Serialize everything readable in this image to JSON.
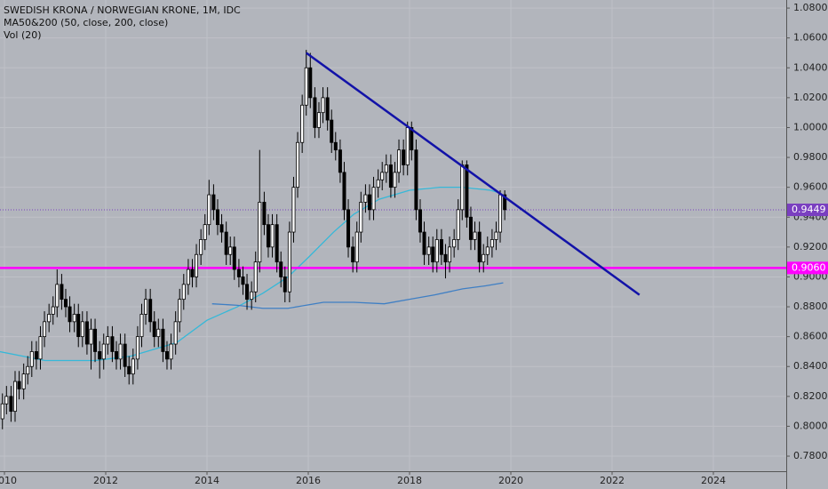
{
  "chart_data": {
    "type": "candlestick",
    "title": "SWEDISH KRONA / NORWEGIAN KRONE, 1M, IDC",
    "indicators": [
      "MA50&200 (50, close, 200, close)",
      "Vol (20)"
    ],
    "xlim": [
      2009.912,
      2025.439
    ],
    "xticks": [
      2010,
      2012,
      2014,
      2016,
      2018,
      2020,
      2022,
      2024
    ],
    "ylim": [
      0.7699,
      1.0854
    ],
    "yticks": [
      {
        "value": 0.78,
        "label": "0.7800"
      },
      {
        "value": 0.8,
        "label": "0.8000"
      },
      {
        "value": 0.82,
        "label": "0.8200"
      },
      {
        "value": 0.84,
        "label": "0.8400"
      },
      {
        "value": 0.86,
        "label": "0.8600"
      },
      {
        "value": 0.88,
        "label": "0.8800"
      },
      {
        "value": 0.9,
        "label": "0.9000"
      },
      {
        "value": 0.92,
        "label": "0.9200"
      },
      {
        "value": 0.94,
        "label": "0.9400"
      },
      {
        "value": 0.96,
        "label": "0.9600"
      },
      {
        "value": 0.98,
        "label": "0.9800"
      },
      {
        "value": 1.0,
        "label": "1.0000"
      },
      {
        "value": 1.02,
        "label": "1.0200"
      },
      {
        "value": 1.04,
        "label": "1.0400"
      },
      {
        "value": 1.06,
        "label": "1.0600"
      },
      {
        "value": 1.08,
        "label": "1.0800"
      }
    ],
    "grid": true,
    "up_color": "#ffffff",
    "down_color": "#000000",
    "x": [
      2009.96,
      2010.04,
      2010.13,
      2010.21,
      2010.29,
      2010.38,
      2010.46,
      2010.54,
      2010.63,
      2010.71,
      2010.79,
      2010.88,
      2010.96,
      2011.04,
      2011.13,
      2011.21,
      2011.29,
      2011.38,
      2011.46,
      2011.54,
      2011.63,
      2011.71,
      2011.79,
      2011.88,
      2011.96,
      2012.04,
      2012.13,
      2012.21,
      2012.29,
      2012.38,
      2012.46,
      2012.54,
      2012.63,
      2012.71,
      2012.79,
      2012.88,
      2012.96,
      2013.04,
      2013.13,
      2013.21,
      2013.29,
      2013.38,
      2013.46,
      2013.54,
      2013.63,
      2013.71,
      2013.79,
      2013.88,
      2013.96,
      2014.04,
      2014.13,
      2014.21,
      2014.29,
      2014.38,
      2014.46,
      2014.54,
      2014.63,
      2014.71,
      2014.79,
      2014.88,
      2014.96,
      2015.04,
      2015.13,
      2015.21,
      2015.29,
      2015.38,
      2015.46,
      2015.54,
      2015.63,
      2015.71,
      2015.79,
      2015.88,
      2015.96,
      2016.04,
      2016.13,
      2016.21,
      2016.29,
      2016.38,
      2016.46,
      2016.54,
      2016.63,
      2016.71,
      2016.79,
      2016.88,
      2016.96,
      2017.04,
      2017.13,
      2017.21,
      2017.29,
      2017.38,
      2017.46,
      2017.54,
      2017.63,
      2017.71,
      2017.79,
      2017.88,
      2017.96,
      2018.04,
      2018.13,
      2018.21,
      2018.29,
      2018.38,
      2018.46,
      2018.54,
      2018.63,
      2018.71,
      2018.79,
      2018.88,
      2018.96,
      2019.04,
      2019.13,
      2019.21,
      2019.29,
      2019.38,
      2019.46,
      2019.54,
      2019.63,
      2019.71,
      2019.79,
      2019.88
    ],
    "ohlc": [
      [
        0.805,
        0.822,
        0.798,
        0.815
      ],
      [
        0.815,
        0.827,
        0.808,
        0.82
      ],
      [
        0.82,
        0.827,
        0.803,
        0.81
      ],
      [
        0.81,
        0.837,
        0.803,
        0.83
      ],
      [
        0.83,
        0.837,
        0.818,
        0.825
      ],
      [
        0.825,
        0.842,
        0.818,
        0.835
      ],
      [
        0.835,
        0.847,
        0.828,
        0.84
      ],
      [
        0.84,
        0.857,
        0.833,
        0.85
      ],
      [
        0.85,
        0.857,
        0.838,
        0.845
      ],
      [
        0.845,
        0.867,
        0.838,
        0.86
      ],
      [
        0.86,
        0.877,
        0.853,
        0.87
      ],
      [
        0.87,
        0.882,
        0.863,
        0.875
      ],
      [
        0.875,
        0.887,
        0.868,
        0.88
      ],
      [
        0.88,
        0.905,
        0.873,
        0.895
      ],
      [
        0.895,
        0.902,
        0.878,
        0.885
      ],
      [
        0.885,
        0.892,
        0.873,
        0.88
      ],
      [
        0.88,
        0.887,
        0.863,
        0.87
      ],
      [
        0.87,
        0.882,
        0.863,
        0.875
      ],
      [
        0.875,
        0.882,
        0.853,
        0.86
      ],
      [
        0.86,
        0.877,
        0.853,
        0.87
      ],
      [
        0.87,
        0.877,
        0.848,
        0.855
      ],
      [
        0.855,
        0.872,
        0.838,
        0.865
      ],
      [
        0.865,
        0.872,
        0.843,
        0.85
      ],
      [
        0.85,
        0.857,
        0.832,
        0.845
      ],
      [
        0.845,
        0.862,
        0.838,
        0.855
      ],
      [
        0.855,
        0.867,
        0.848,
        0.86
      ],
      [
        0.86,
        0.867,
        0.843,
        0.85
      ],
      [
        0.85,
        0.857,
        0.838,
        0.845
      ],
      [
        0.845,
        0.862,
        0.838,
        0.855
      ],
      [
        0.855,
        0.862,
        0.833,
        0.84
      ],
      [
        0.84,
        0.847,
        0.828,
        0.835
      ],
      [
        0.835,
        0.852,
        0.828,
        0.845
      ],
      [
        0.845,
        0.867,
        0.838,
        0.86
      ],
      [
        0.86,
        0.882,
        0.853,
        0.875
      ],
      [
        0.875,
        0.892,
        0.868,
        0.885
      ],
      [
        0.885,
        0.892,
        0.863,
        0.87
      ],
      [
        0.87,
        0.877,
        0.853,
        0.86
      ],
      [
        0.86,
        0.872,
        0.853,
        0.865
      ],
      [
        0.865,
        0.872,
        0.843,
        0.85
      ],
      [
        0.85,
        0.857,
        0.838,
        0.845
      ],
      [
        0.845,
        0.862,
        0.838,
        0.855
      ],
      [
        0.855,
        0.877,
        0.848,
        0.87
      ],
      [
        0.87,
        0.892,
        0.863,
        0.885
      ],
      [
        0.885,
        0.902,
        0.878,
        0.895
      ],
      [
        0.895,
        0.912,
        0.888,
        0.905
      ],
      [
        0.905,
        0.912,
        0.893,
        0.9
      ],
      [
        0.9,
        0.922,
        0.893,
        0.915
      ],
      [
        0.915,
        0.932,
        0.908,
        0.925
      ],
      [
        0.925,
        0.942,
        0.918,
        0.935
      ],
      [
        0.935,
        0.965,
        0.928,
        0.955
      ],
      [
        0.955,
        0.962,
        0.938,
        0.945
      ],
      [
        0.945,
        0.952,
        0.928,
        0.935
      ],
      [
        0.935,
        0.942,
        0.923,
        0.93
      ],
      [
        0.93,
        0.937,
        0.908,
        0.915
      ],
      [
        0.915,
        0.927,
        0.908,
        0.92
      ],
      [
        0.92,
        0.927,
        0.898,
        0.905
      ],
      [
        0.905,
        0.912,
        0.893,
        0.9
      ],
      [
        0.9,
        0.907,
        0.888,
        0.895
      ],
      [
        0.895,
        0.902,
        0.878,
        0.885
      ],
      [
        0.885,
        0.897,
        0.878,
        0.89
      ],
      [
        0.89,
        0.917,
        0.883,
        0.91
      ],
      [
        0.91,
        0.985,
        0.903,
        0.95
      ],
      [
        0.95,
        0.957,
        0.928,
        0.935
      ],
      [
        0.935,
        0.942,
        0.913,
        0.92
      ],
      [
        0.92,
        0.942,
        0.913,
        0.935
      ],
      [
        0.935,
        0.942,
        0.903,
        0.91
      ],
      [
        0.91,
        0.917,
        0.893,
        0.9
      ],
      [
        0.9,
        0.907,
        0.883,
        0.89
      ],
      [
        0.89,
        0.937,
        0.883,
        0.93
      ],
      [
        0.93,
        0.967,
        0.923,
        0.96
      ],
      [
        0.96,
        0.997,
        0.953,
        0.99
      ],
      [
        0.99,
        1.022,
        0.983,
        1.015
      ],
      [
        1.015,
        1.052,
        1.008,
        1.04
      ],
      [
        1.04,
        1.05,
        1.013,
        1.02
      ],
      [
        1.02,
        1.027,
        0.993,
        1.0
      ],
      [
        1.0,
        1.017,
        0.993,
        1.01
      ],
      [
        1.01,
        1.027,
        1.003,
        1.02
      ],
      [
        1.02,
        1.027,
        0.998,
        1.005
      ],
      [
        1.005,
        1.012,
        0.983,
        0.99
      ],
      [
        0.99,
        0.997,
        0.978,
        0.985
      ],
      [
        0.985,
        0.992,
        0.963,
        0.97
      ],
      [
        0.97,
        0.977,
        0.938,
        0.945
      ],
      [
        0.945,
        0.952,
        0.913,
        0.92
      ],
      [
        0.92,
        0.927,
        0.903,
        0.91
      ],
      [
        0.91,
        0.937,
        0.903,
        0.93
      ],
      [
        0.93,
        0.957,
        0.923,
        0.95
      ],
      [
        0.95,
        0.962,
        0.943,
        0.955
      ],
      [
        0.955,
        0.962,
        0.938,
        0.945
      ],
      [
        0.945,
        0.967,
        0.938,
        0.96
      ],
      [
        0.96,
        0.972,
        0.953,
        0.965
      ],
      [
        0.965,
        0.977,
        0.958,
        0.97
      ],
      [
        0.97,
        0.982,
        0.963,
        0.975
      ],
      [
        0.975,
        0.982,
        0.953,
        0.96
      ],
      [
        0.96,
        0.977,
        0.953,
        0.97
      ],
      [
        0.97,
        0.992,
        0.963,
        0.985
      ],
      [
        0.985,
        0.992,
        0.968,
        0.975
      ],
      [
        0.975,
        1.004,
        0.968,
        1.0
      ],
      [
        1.0,
        1.004,
        0.978,
        0.985
      ],
      [
        0.985,
        0.992,
        0.938,
        0.945
      ],
      [
        0.945,
        0.952,
        0.923,
        0.93
      ],
      [
        0.93,
        0.937,
        0.908,
        0.915
      ],
      [
        0.915,
        0.927,
        0.908,
        0.92
      ],
      [
        0.92,
        0.927,
        0.903,
        0.91
      ],
      [
        0.91,
        0.932,
        0.903,
        0.925
      ],
      [
        0.925,
        0.932,
        0.908,
        0.915
      ],
      [
        0.915,
        0.922,
        0.899,
        0.91
      ],
      [
        0.91,
        0.927,
        0.903,
        0.92
      ],
      [
        0.92,
        0.932,
        0.913,
        0.925
      ],
      [
        0.925,
        0.952,
        0.918,
        0.945
      ],
      [
        0.945,
        0.978,
        0.938,
        0.975
      ],
      [
        0.975,
        0.978,
        0.933,
        0.94
      ],
      [
        0.94,
        0.947,
        0.918,
        0.925
      ],
      [
        0.925,
        0.937,
        0.918,
        0.93
      ],
      [
        0.93,
        0.937,
        0.903,
        0.91
      ],
      [
        0.91,
        0.922,
        0.903,
        0.915
      ],
      [
        0.915,
        0.927,
        0.908,
        0.92
      ],
      [
        0.92,
        0.932,
        0.913,
        0.925
      ],
      [
        0.925,
        0.937,
        0.918,
        0.93
      ],
      [
        0.93,
        0.958,
        0.923,
        0.955
      ],
      [
        0.955,
        0.958,
        0.938,
        0.945
      ]
    ],
    "series": [
      {
        "color": "#36b8d8",
        "x": [
          2009.9,
          2010.8,
          2011.8,
          2012.5,
          2013.4,
          2014.0,
          2014.6,
          2015.1,
          2015.6,
          2016.0,
          2016.5,
          2016.9,
          2017.4,
          2018.0,
          2018.6,
          2019.05,
          2019.6,
          2019.8
        ],
        "values": [
          0.85,
          0.844,
          0.844,
          0.847,
          0.856,
          0.871,
          0.88,
          0.889,
          0.9,
          0.913,
          0.93,
          0.942,
          0.952,
          0.958,
          0.96,
          0.96,
          0.958,
          0.956
        ]
      },
      {
        "color": "#3f7fc4",
        "x": [
          2014.1,
          2014.6,
          2015.1,
          2015.6,
          2016.3,
          2016.9,
          2017.5,
          2018.0,
          2018.5,
          2019.05,
          2019.5,
          2019.85
        ],
        "values": [
          0.882,
          0.881,
          0.879,
          0.879,
          0.883,
          0.883,
          0.882,
          0.885,
          0.888,
          0.892,
          0.894,
          0.896
        ]
      }
    ],
    "trendline": {
      "color": "#1212a8",
      "x": [
        2015.96,
        2022.54
      ],
      "values": [
        1.05,
        0.888
      ]
    },
    "price_lines": [
      {
        "value": 0.9449,
        "label": "0.9449",
        "color": "#7a3fc0",
        "style": "dotted"
      },
      {
        "value": 0.906,
        "label": "0.9060",
        "color": "#ff00ff",
        "style": "solid"
      }
    ]
  }
}
